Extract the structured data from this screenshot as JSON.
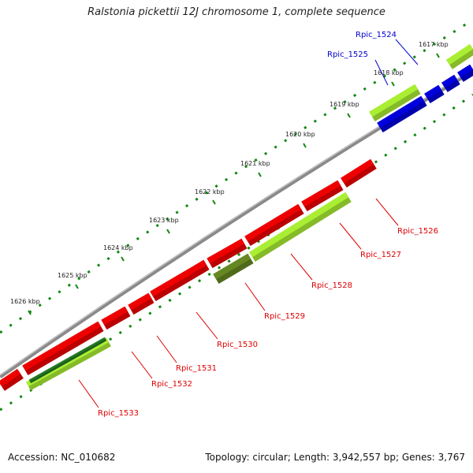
{
  "title": "Ralstonia pickettii 12J chromosome 1, complete sequence",
  "footer": {
    "accession": "Accession: NC_010682",
    "summary": "Topology: circular; Length: 3,942,557 bp; Genes: 3,767"
  },
  "ticks": [
    "1617 kbp",
    "1618 kbp",
    "1619 kbp",
    "1620 kbp",
    "1621 kbp",
    "1622 kbp",
    "1623 kbp",
    "1624 kbp",
    "1625 kbp",
    "1626 kbp"
  ],
  "colors": {
    "reverse_gene": "#ee0000",
    "forward_gene": "#0000dd",
    "rna_light": "#aaee33",
    "rna_dark": "#668822",
    "rna_mid": "#227722",
    "backbone": "#888888",
    "tick": "#118811",
    "label_red": "#dd0000",
    "label_blue": "#0000cc"
  },
  "genes": [
    {
      "name": "Rpic_1524",
      "strand": "forward"
    },
    {
      "name": "Rpic_1525",
      "strand": "forward"
    },
    {
      "name": "Rpic_1526",
      "strand": "reverse"
    },
    {
      "name": "Rpic_1527",
      "strand": "reverse"
    },
    {
      "name": "Rpic_1528",
      "strand": "reverse"
    },
    {
      "name": "Rpic_1529",
      "strand": "reverse"
    },
    {
      "name": "Rpic_1530",
      "strand": "reverse"
    },
    {
      "name": "Rpic_1531",
      "strand": "reverse"
    },
    {
      "name": "Rpic_1532",
      "strand": "reverse"
    },
    {
      "name": "Rpic_1533",
      "strand": "reverse"
    }
  ]
}
